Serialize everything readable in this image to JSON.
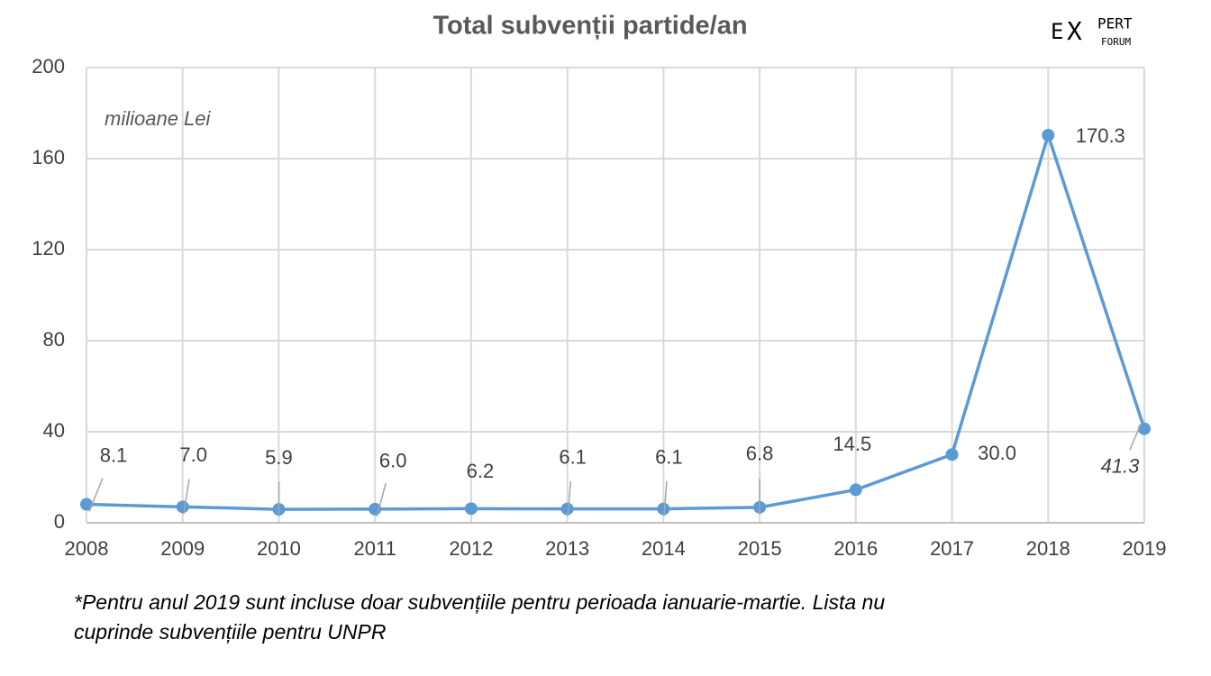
{
  "chart_data": {
    "type": "line",
    "title": "Total subvenții partide/an",
    "unit_label": "milioane Lei",
    "categories": [
      "2008",
      "2009",
      "2010",
      "2011",
      "2012",
      "2013",
      "2014",
      "2015",
      "2016",
      "2017",
      "2018",
      "2019"
    ],
    "series": [
      {
        "name": "Total subvenții partide/an",
        "color": "#5b9bd5",
        "values": [
          8.1,
          7.0,
          5.9,
          6.0,
          6.2,
          6.1,
          6.1,
          6.8,
          14.5,
          30.0,
          170.3,
          41.3
        ],
        "value_labels": [
          "8.1",
          "7.0",
          "5.9",
          "6.0",
          "6.2",
          "6.1",
          "6.1",
          "6.8",
          "14.5",
          "30.0",
          "170.3",
          "41.3"
        ]
      }
    ],
    "ylim": [
      0,
      200
    ],
    "yticks": [
      0,
      40,
      80,
      120,
      160,
      200
    ],
    "grid": true,
    "footnote": [
      "*Pentru anul 2019 sunt incluse doar subvențiile pentru perioada ianuarie-martie. Lista nu",
      "cuprinde subvențiile pentru UNPR"
    ],
    "logo": [
      "E",
      "X",
      "PERT",
      "FORUM"
    ]
  }
}
